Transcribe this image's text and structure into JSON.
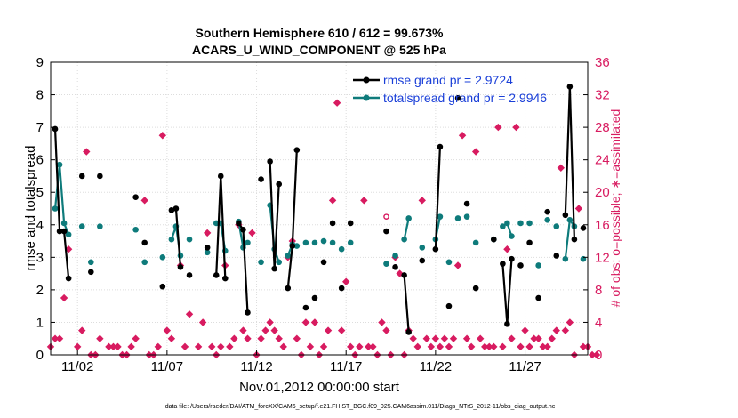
{
  "chart_data": {
    "type": "line",
    "title": "Southern Hemisphere 610 / 612 = 99.673%",
    "subtitle": "ACARS_U_WIND_COMPONENT @ 525 hPa",
    "xlabel": "Nov.01,2012 00:00:00 start",
    "ylabel": "rmse and totalspread",
    "y2label": "# of obs: o=possible; ∗=assimilated",
    "footnote": "data file: /Users/raeder/DAI/ATM_forcXX/CAM6_setup/f.e21.FHIST_BGC.f09_025.CAM6assim.011/Diags_NTrS_2012-11/obs_diag_output.nc",
    "xlim": [
      0.5,
      30.5
    ],
    "ylim": [
      0,
      9
    ],
    "y2lim": [
      0,
      36
    ],
    "grid": true,
    "legend_placement": "top-right",
    "x_tick_values": [
      2,
      7,
      12,
      17,
      22,
      27
    ],
    "x_tick_labels": [
      "11/02",
      "11/07",
      "11/12",
      "11/17",
      "11/22",
      "11/27"
    ],
    "y_ticks": [
      0,
      1,
      2,
      3,
      4,
      5,
      6,
      7,
      8,
      9
    ],
    "y2_ticks": [
      0,
      4,
      8,
      12,
      16,
      20,
      24,
      28,
      32,
      36
    ],
    "colors": {
      "rmse": "#000000",
      "spread": "#0e7b7b",
      "obs": "#d81b60",
      "legend_text": "#1a3fd8",
      "right_axis": "#d81b60"
    },
    "series": [
      {
        "name": "rmse grand pr = 2.9724",
        "points": [
          [
            0.75,
            6.95
          ],
          [
            1.0,
            3.8
          ],
          [
            1.25,
            3.8
          ],
          [
            1.5,
            2.35
          ],
          [
            2.25,
            5.5
          ],
          [
            2.75,
            2.55
          ],
          [
            3.25,
            5.5
          ],
          [
            5.25,
            4.85
          ],
          [
            5.75,
            3.45
          ],
          [
            6.75,
            2.1
          ],
          [
            7.25,
            4.45
          ],
          [
            7.5,
            4.5
          ],
          [
            7.75,
            2.7
          ],
          [
            8.25,
            2.45
          ],
          [
            9.25,
            3.3
          ],
          [
            9.75,
            2.45
          ],
          [
            10.0,
            5.5
          ],
          [
            10.25,
            2.35
          ],
          [
            11.0,
            4.05
          ],
          [
            11.25,
            3.85
          ],
          [
            11.5,
            1.3
          ],
          [
            12.25,
            5.4
          ],
          [
            12.75,
            5.95
          ],
          [
            13.0,
            2.65
          ],
          [
            13.25,
            5.25
          ],
          [
            13.75,
            2.05
          ],
          [
            14.0,
            3.35
          ],
          [
            14.25,
            6.3
          ],
          [
            14.75,
            1.45
          ],
          [
            15.25,
            1.75
          ],
          [
            15.75,
            2.85
          ],
          [
            16.25,
            4.05
          ],
          [
            16.75,
            2.05
          ],
          [
            17.25,
            4.05
          ],
          [
            19.25,
            3.8
          ],
          [
            19.75,
            2.7
          ],
          [
            20.25,
            2.45
          ],
          [
            20.5,
            0.7
          ],
          [
            21.25,
            2.9
          ],
          [
            22.0,
            3.25
          ],
          [
            22.25,
            6.4
          ],
          [
            22.75,
            1.5
          ],
          [
            23.25,
            7.9
          ],
          [
            23.75,
            4.65
          ],
          [
            24.25,
            2.05
          ],
          [
            25.25,
            3.55
          ],
          [
            25.75,
            2.8
          ],
          [
            26.0,
            0.95
          ],
          [
            26.25,
            2.95
          ],
          [
            26.75,
            2.75
          ],
          [
            27.25,
            3.45
          ],
          [
            27.75,
            1.75
          ],
          [
            28.25,
            4.4
          ],
          [
            28.75,
            3.05
          ],
          [
            29.25,
            4.3
          ],
          [
            29.5,
            8.25
          ],
          [
            29.75,
            3.55
          ],
          [
            30.25,
            3.9
          ]
        ]
      },
      {
        "name": "totalspread grand pr = 2.9946",
        "points": [
          [
            0.75,
            4.5
          ],
          [
            1.0,
            5.85
          ],
          [
            1.25,
            4.05
          ],
          [
            1.5,
            3.7
          ],
          [
            2.25,
            3.95
          ],
          [
            2.75,
            2.85
          ],
          [
            3.25,
            3.95
          ],
          [
            5.25,
            3.85
          ],
          [
            5.75,
            2.85
          ],
          [
            6.75,
            3.0
          ],
          [
            7.25,
            3.55
          ],
          [
            7.5,
            3.95
          ],
          [
            7.75,
            3.05
          ],
          [
            8.25,
            3.55
          ],
          [
            9.25,
            3.15
          ],
          [
            9.75,
            4.05
          ],
          [
            10.0,
            4.05
          ],
          [
            10.25,
            3.2
          ],
          [
            11.0,
            4.1
          ],
          [
            11.25,
            3.3
          ],
          [
            11.5,
            3.45
          ],
          [
            12.25,
            2.85
          ],
          [
            12.75,
            4.6
          ],
          [
            13.0,
            3.25
          ],
          [
            13.25,
            2.85
          ],
          [
            13.75,
            3.05
          ],
          [
            14.0,
            3.4
          ],
          [
            14.25,
            3.35
          ],
          [
            14.75,
            3.45
          ],
          [
            15.25,
            3.45
          ],
          [
            15.75,
            3.5
          ],
          [
            16.25,
            3.45
          ],
          [
            16.75,
            3.25
          ],
          [
            17.25,
            3.45
          ],
          [
            19.25,
            2.8
          ],
          [
            19.75,
            3.05
          ],
          [
            20.25,
            3.55
          ],
          [
            20.5,
            4.2
          ],
          [
            21.25,
            3.3
          ],
          [
            22.0,
            3.55
          ],
          [
            22.25,
            4.25
          ],
          [
            22.75,
            2.85
          ],
          [
            23.25,
            4.2
          ],
          [
            23.75,
            4.25
          ],
          [
            24.25,
            3.45
          ],
          [
            25.25,
            3.55
          ],
          [
            25.75,
            3.95
          ],
          [
            26.0,
            4.05
          ],
          [
            26.25,
            3.65
          ],
          [
            26.75,
            4.05
          ],
          [
            27.25,
            4.05
          ],
          [
            27.75,
            2.75
          ],
          [
            28.25,
            4.15
          ],
          [
            28.75,
            3.95
          ],
          [
            29.25,
            2.95
          ],
          [
            29.5,
            4.15
          ],
          [
            29.75,
            3.95
          ],
          [
            30.25,
            2.95
          ]
        ]
      }
    ],
    "obs_assimilated": {
      "name": "# of obs assimilated",
      "points": [
        [
          0.5,
          1
        ],
        [
          0.75,
          2
        ],
        [
          1.0,
          2
        ],
        [
          1.25,
          7
        ],
        [
          1.5,
          13
        ],
        [
          2.0,
          1
        ],
        [
          2.25,
          3
        ],
        [
          2.5,
          25
        ],
        [
          2.75,
          0
        ],
        [
          3.0,
          0
        ],
        [
          3.25,
          2
        ],
        [
          3.75,
          1
        ],
        [
          4.0,
          1
        ],
        [
          4.25,
          1
        ],
        [
          4.5,
          0
        ],
        [
          4.75,
          0
        ],
        [
          5.0,
          1
        ],
        [
          5.25,
          2
        ],
        [
          5.75,
          19
        ],
        [
          6.0,
          0
        ],
        [
          6.25,
          0
        ],
        [
          6.5,
          1
        ],
        [
          6.75,
          27
        ],
        [
          7.0,
          3
        ],
        [
          7.25,
          2
        ],
        [
          7.75,
          11
        ],
        [
          8.0,
          1
        ],
        [
          8.25,
          5
        ],
        [
          8.75,
          1
        ],
        [
          9.0,
          4
        ],
        [
          9.25,
          15
        ],
        [
          9.5,
          1
        ],
        [
          9.75,
          0
        ],
        [
          10.0,
          1
        ],
        [
          10.25,
          11
        ],
        [
          10.5,
          1
        ],
        [
          10.75,
          2
        ],
        [
          11.0,
          16
        ],
        [
          11.25,
          3
        ],
        [
          11.5,
          2
        ],
        [
          11.75,
          15
        ],
        [
          12.0,
          0
        ],
        [
          12.25,
          2
        ],
        [
          12.5,
          3
        ],
        [
          12.75,
          4
        ],
        [
          13.0,
          3
        ],
        [
          13.25,
          2
        ],
        [
          13.5,
          1
        ],
        [
          13.75,
          12
        ],
        [
          14.0,
          14
        ],
        [
          14.25,
          2
        ],
        [
          14.5,
          0
        ],
        [
          14.75,
          4
        ],
        [
          15.0,
          1
        ],
        [
          15.25,
          4
        ],
        [
          15.5,
          0
        ],
        [
          15.75,
          1
        ],
        [
          16.0,
          3
        ],
        [
          16.25,
          19
        ],
        [
          16.5,
          31
        ],
        [
          16.75,
          3
        ],
        [
          17.0,
          9
        ],
        [
          17.25,
          1
        ],
        [
          17.5,
          0
        ],
        [
          17.75,
          1
        ],
        [
          18.0,
          19
        ],
        [
          18.25,
          1
        ],
        [
          18.5,
          1
        ],
        [
          18.75,
          0
        ],
        [
          19.0,
          4
        ],
        [
          19.25,
          3
        ],
        [
          19.5,
          0
        ],
        [
          19.75,
          12
        ],
        [
          20.0,
          10
        ],
        [
          20.25,
          0
        ],
        [
          20.5,
          3
        ],
        [
          20.75,
          2
        ],
        [
          21.0,
          1
        ],
        [
          21.25,
          19
        ],
        [
          21.5,
          2
        ],
        [
          21.75,
          1
        ],
        [
          22.0,
          2
        ],
        [
          22.25,
          1
        ],
        [
          22.5,
          2
        ],
        [
          22.75,
          1
        ],
        [
          23.0,
          2
        ],
        [
          23.25,
          11
        ],
        [
          23.5,
          27
        ],
        [
          23.75,
          2
        ],
        [
          24.0,
          1
        ],
        [
          24.25,
          25
        ],
        [
          24.5,
          2
        ],
        [
          24.75,
          1
        ],
        [
          25.0,
          1
        ],
        [
          25.25,
          1
        ],
        [
          25.5,
          28
        ],
        [
          25.75,
          1
        ],
        [
          26.0,
          13
        ],
        [
          26.25,
          2
        ],
        [
          26.5,
          28
        ],
        [
          26.75,
          1
        ],
        [
          27.0,
          3
        ],
        [
          27.25,
          1
        ],
        [
          27.5,
          2
        ],
        [
          27.75,
          2
        ],
        [
          28.0,
          1
        ],
        [
          28.25,
          1
        ],
        [
          28.5,
          2
        ],
        [
          28.75,
          3
        ],
        [
          29.0,
          23
        ],
        [
          29.25,
          3
        ],
        [
          29.5,
          4
        ],
        [
          29.75,
          0
        ],
        [
          30.0,
          18
        ],
        [
          30.25,
          1
        ],
        [
          30.5,
          1
        ],
        [
          30.75,
          0
        ],
        [
          31.0,
          0
        ]
      ]
    },
    "obs_possible": {
      "name": "# of obs possible",
      "points": [
        [
          19.25,
          17
        ]
      ]
    }
  }
}
